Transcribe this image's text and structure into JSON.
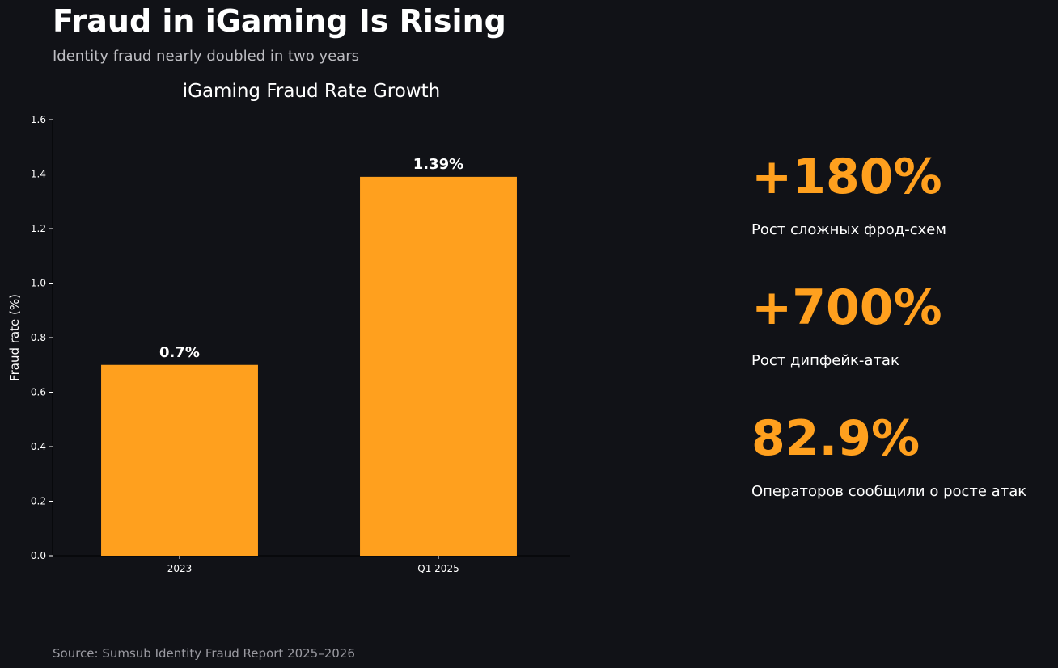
{
  "header": {
    "title": "Fraud in iGaming Is Rising",
    "subtitle": "Identity fraud nearly doubled in two years"
  },
  "colors": {
    "background": "#111217",
    "accent": "#ffa01e",
    "text": "#ffffff",
    "muted": "#9a9aa1"
  },
  "chart_data": {
    "type": "bar",
    "title": "iGaming Fraud Rate Growth",
    "xlabel": "",
    "ylabel": "Fraud rate (%)",
    "categories": [
      "2023",
      "Q1 2025"
    ],
    "values": [
      0.7,
      1.39
    ],
    "value_labels": [
      "0.7%",
      "1.39%"
    ],
    "ylim": [
      0,
      1.6
    ],
    "yticks": [
      0.0,
      0.2,
      0.4,
      0.6,
      0.8,
      1.0,
      1.2,
      1.4,
      1.6
    ],
    "ytick_labels": [
      "0.0",
      "0.2",
      "0.4",
      "0.6",
      "0.8",
      "1.0",
      "1.2",
      "1.4",
      "1.6"
    ],
    "grid": false,
    "bar_color": "#ffa01e"
  },
  "stats": [
    {
      "value": "+180%",
      "label": "Рост сложных фрод-схем"
    },
    {
      "value": "+700%",
      "label": "Рост дипфейк-атак"
    },
    {
      "value": "82.9%",
      "label": "Операторов сообщили о росте атак"
    }
  ],
  "footer": {
    "source": "Source: Sumsub Identity Fraud Report 2025–2026"
  }
}
